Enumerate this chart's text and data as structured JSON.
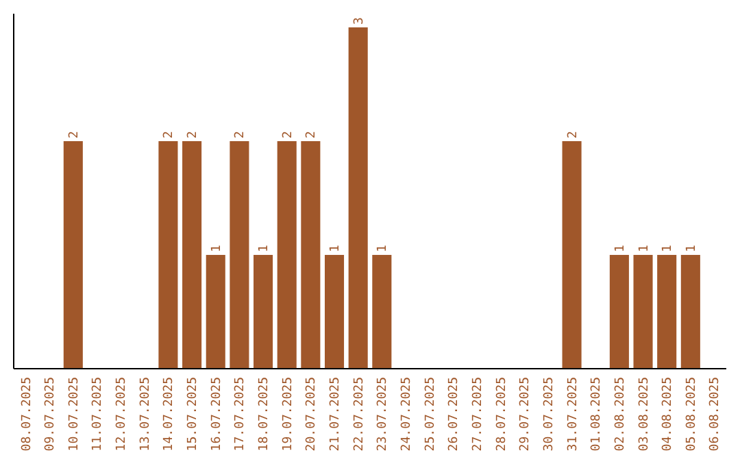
{
  "chart_data": {
    "type": "bar",
    "categories": [
      "08.07.2025",
      "09.07.2025",
      "10.07.2025",
      "11.07.2025",
      "12.07.2025",
      "13.07.2025",
      "14.07.2025",
      "15.07.2025",
      "16.07.2025",
      "17.07.2025",
      "18.07.2025",
      "19.07.2025",
      "20.07.2025",
      "21.07.2025",
      "22.07.2025",
      "23.07.2025",
      "24.07.2025",
      "25.07.2025",
      "26.07.2025",
      "27.07.2025",
      "28.07.2025",
      "29.07.2025",
      "30.07.2025",
      "31.07.2025",
      "01.08.2025",
      "02.08.2025",
      "03.08.2025",
      "04.08.2025",
      "05.08.2025",
      "06.08.2025"
    ],
    "values": [
      0,
      0,
      2,
      0,
      0,
      0,
      2,
      2,
      1,
      2,
      1,
      2,
      2,
      1,
      3,
      1,
      0,
      0,
      0,
      0,
      0,
      0,
      0,
      2,
      0,
      1,
      1,
      1,
      1,
      0
    ],
    "value_labels": [
      null,
      null,
      "2",
      null,
      null,
      null,
      "2",
      "2",
      "1",
      "2",
      "1",
      "2",
      "2",
      "1",
      "3",
      "1",
      null,
      null,
      null,
      null,
      null,
      null,
      null,
      "2",
      null,
      "1",
      "1",
      "1",
      "1",
      null
    ],
    "color": "#a0572a"
  }
}
